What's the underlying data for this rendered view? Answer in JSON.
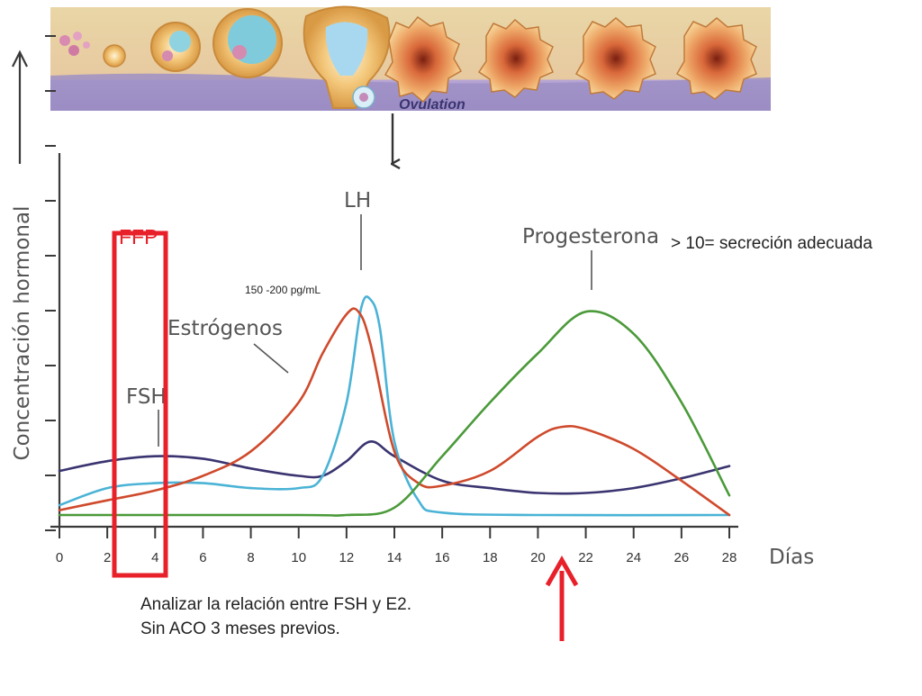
{
  "header_label": "Ovulation",
  "chart_data": {
    "type": "line",
    "xlabel": "Días",
    "ylabel": "Concentración hormonal",
    "xlim": [
      0,
      28
    ],
    "x_ticks": [
      0,
      2,
      4,
      6,
      8,
      10,
      12,
      14,
      16,
      18,
      20,
      22,
      24,
      26,
      28
    ],
    "ylim": [
      0,
      100
    ],
    "grid": false,
    "series": [
      {
        "name": "FSH",
        "color": "#3a3470",
        "points": [
          [
            0,
            18
          ],
          [
            2,
            22
          ],
          [
            4,
            24
          ],
          [
            6,
            23
          ],
          [
            8,
            19
          ],
          [
            10,
            16
          ],
          [
            11,
            16
          ],
          [
            12,
            22
          ],
          [
            13,
            30
          ],
          [
            14,
            24
          ],
          [
            16,
            14
          ],
          [
            18,
            11
          ],
          [
            20,
            9
          ],
          [
            22,
            9
          ],
          [
            24,
            11
          ],
          [
            26,
            15
          ],
          [
            28,
            20
          ]
        ]
      },
      {
        "name": "LH",
        "color": "#4ab3d6",
        "points": [
          [
            0,
            4
          ],
          [
            2,
            11
          ],
          [
            4,
            13
          ],
          [
            6,
            13
          ],
          [
            8,
            11
          ],
          [
            10,
            11
          ],
          [
            11,
            16
          ],
          [
            12,
            46
          ],
          [
            12.6,
            84
          ],
          [
            13,
            88
          ],
          [
            13.4,
            76
          ],
          [
            14,
            30
          ],
          [
            15,
            6
          ],
          [
            16,
            1
          ],
          [
            20,
            0
          ],
          [
            28,
            0
          ]
        ]
      },
      {
        "name": "Estrógenos",
        "color": "#cf4a2c",
        "points": [
          [
            0,
            2
          ],
          [
            2,
            6
          ],
          [
            4,
            10
          ],
          [
            6,
            16
          ],
          [
            8,
            26
          ],
          [
            10,
            46
          ],
          [
            11,
            66
          ],
          [
            12,
            82
          ],
          [
            12.5,
            83
          ],
          [
            13,
            70
          ],
          [
            14,
            26
          ],
          [
            15,
            13
          ],
          [
            16,
            12
          ],
          [
            18,
            18
          ],
          [
            20,
            32
          ],
          [
            21,
            36
          ],
          [
            22,
            35
          ],
          [
            24,
            27
          ],
          [
            26,
            14
          ],
          [
            28,
            0
          ]
        ]
      },
      {
        "name": "Progesterona",
        "color": "#4b9a3a",
        "points": [
          [
            0,
            0
          ],
          [
            10,
            0
          ],
          [
            12,
            0
          ],
          [
            14,
            3
          ],
          [
            16,
            24
          ],
          [
            18,
            46
          ],
          [
            20,
            66
          ],
          [
            22,
            83
          ],
          [
            24,
            74
          ],
          [
            26,
            46
          ],
          [
            28,
            8
          ]
        ]
      }
    ],
    "annotations": {
      "lh_label": "LH",
      "estrogen_label": "Estrógenos",
      "fsh_label": "FSH",
      "progesterone_label": "Progesterona",
      "peak_value": "150 -200 pg/mL",
      "ffp_label": "FFP",
      "progesterone_note": "> 10= secreción adecuada"
    }
  },
  "notes": {
    "line1": "Analizar la relación entre FSH y E2.",
    "line2": "Sin ACO 3 meses previos."
  },
  "colors": {
    "highlight": "#e8202a",
    "axis": "#3a3a3a"
  }
}
